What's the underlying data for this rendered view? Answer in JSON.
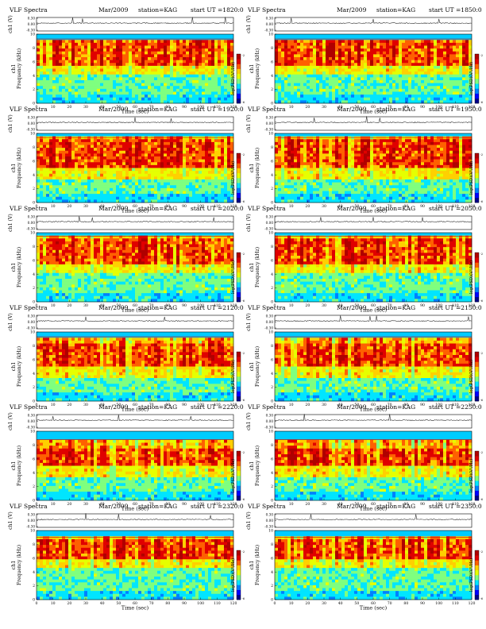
{
  "chart_data": [
    {
      "type": "heatmap",
      "title": "VLF Spectra",
      "date": "Mar/2009",
      "station": "station=KAG",
      "start": "start  UT  =1820:0",
      "xlabel": "Time  (sec)",
      "ylabel": "Frequency  (kHz)",
      "ylabel_channel": "ch1",
      "trace_label": "ch1 (V)",
      "trace_ticks": [
        "0.30",
        "0.00",
        "-0.30"
      ],
      "colorbar_label": "log(PSD)(V²/Hz)",
      "colorbar_ticks": [
        "-2",
        "-6"
      ],
      "xlim": [
        0,
        120
      ],
      "ylim": [
        0,
        10
      ],
      "x_ticks": [
        0,
        10,
        20,
        30,
        40,
        50,
        60,
        70,
        80,
        90,
        100,
        110,
        120
      ],
      "y_ticks": [
        0,
        2,
        4,
        6,
        8,
        10
      ],
      "band_top_khz": 9.3,
      "intense_band_khz": [
        5.5,
        9.0
      ],
      "spikes_sec": [
        22,
        28,
        95,
        115
      ]
    },
    {
      "type": "heatmap",
      "title": "VLF Spectra",
      "date": "Mar/2009",
      "station": "station=KAG",
      "start": "start  UT  =1850:0",
      "xlabel": "Time  (sec)",
      "ylabel": "Frequency  (kHz)",
      "ylabel_channel": "ch1",
      "trace_label": "ch1 (V)",
      "trace_ticks": [
        "0.30",
        "0.00",
        "-0.30"
      ],
      "colorbar_label": "log(PSD)(V²/Hz)",
      "colorbar_ticks": [
        "-2",
        "-6"
      ],
      "xlim": [
        0,
        120
      ],
      "ylim": [
        0,
        10
      ],
      "x_ticks": [
        0,
        10,
        20,
        30,
        40,
        50,
        60,
        70,
        80,
        90,
        100,
        110,
        120
      ],
      "y_ticks": [
        0,
        2,
        4,
        6,
        8,
        10
      ],
      "band_top_khz": 9.3,
      "intense_band_khz": [
        5.5,
        9.0
      ],
      "spikes_sec": [
        10,
        60,
        100
      ]
    },
    {
      "type": "heatmap",
      "title": "VLF Spectra",
      "date": "Mar/2009",
      "station": "station=KAG",
      "start": "start  UT  =1920:0",
      "xlabel": "Time  (sec)",
      "ylabel": "Frequency  (kHz)",
      "ylabel_channel": "ch1",
      "trace_label": "ch1 (V)",
      "trace_ticks": [
        "0.30",
        "0.00",
        "-0.30"
      ],
      "colorbar_label": "log(PSD)(V²/Hz)",
      "colorbar_ticks": [
        "-2",
        "-6"
      ],
      "xlim": [
        0,
        120
      ],
      "ylim": [
        0,
        10
      ],
      "x_ticks": [
        0,
        10,
        20,
        30,
        40,
        50,
        60,
        70,
        80,
        90,
        100,
        110,
        120
      ],
      "y_ticks": [
        0,
        2,
        4,
        6,
        8,
        10
      ],
      "band_top_khz": 9.4,
      "intense_band_khz": [
        5.0,
        9.2
      ],
      "spikes_sec": [
        60,
        82
      ]
    },
    {
      "type": "heatmap",
      "title": "VLF Spectra",
      "date": "Mar/2009",
      "station": "station=KAG",
      "start": "start  UT  =1950:0",
      "xlabel": "Time  (sec)",
      "ylabel": "Frequency  (kHz)",
      "ylabel_channel": "ch1",
      "trace_label": "ch1 (V)",
      "trace_ticks": [
        "0.30",
        "0.00",
        "-0.30"
      ],
      "colorbar_label": "log(PSD)(V²/Hz)",
      "colorbar_ticks": [
        "-2",
        "-6"
      ],
      "xlim": [
        0,
        120
      ],
      "ylim": [
        0,
        10
      ],
      "x_ticks": [
        0,
        10,
        20,
        30,
        40,
        50,
        60,
        70,
        80,
        90,
        100,
        110,
        120
      ],
      "y_ticks": [
        0,
        2,
        4,
        6,
        8,
        10
      ],
      "band_top_khz": 9.4,
      "intense_band_khz": [
        5.0,
        9.2
      ],
      "spikes_sec": [
        24,
        56,
        64
      ]
    },
    {
      "type": "heatmap",
      "title": "VLF Spectra",
      "date": "Mar/2009",
      "station": "station=KAG",
      "start": "start  UT  =2020:0",
      "xlabel": "Time  (sec)",
      "ylabel": "Frequency  (kHz)",
      "ylabel_channel": "ch1",
      "trace_label": "ch1 (V)",
      "trace_ticks": [
        "0.30",
        "0.00",
        "-0.30"
      ],
      "colorbar_label": "log(PSD)(V²/Hz)",
      "colorbar_ticks": [
        "-2",
        "-6"
      ],
      "xlim": [
        0,
        120
      ],
      "ylim": [
        0,
        10
      ],
      "x_ticks": [
        0,
        10,
        20,
        30,
        40,
        50,
        60,
        70,
        80,
        90,
        100,
        110,
        120
      ],
      "y_ticks": [
        0,
        2,
        4,
        6,
        8,
        10
      ],
      "band_top_khz": 9.5,
      "intense_band_khz": [
        5.5,
        9.2
      ],
      "spikes_sec": [
        26,
        34,
        108
      ]
    },
    {
      "type": "heatmap",
      "title": "VLF Spectra",
      "date": "Mar/2009",
      "station": "station=KAG",
      "start": "start  UT  =2050:0",
      "xlabel": "Time  (sec)",
      "ylabel": "Frequency  (kHz)",
      "ylabel_channel": "ch1",
      "trace_label": "ch1 (V)",
      "trace_ticks": [
        "0.30",
        "0.00",
        "-0.30"
      ],
      "colorbar_label": "log(PSD)(V²/Hz)",
      "colorbar_ticks": [
        "-2",
        "-6"
      ],
      "xlim": [
        0,
        120
      ],
      "ylim": [
        0,
        10
      ],
      "x_ticks": [
        0,
        10,
        20,
        30,
        40,
        50,
        60,
        70,
        80,
        90,
        100,
        110,
        120
      ],
      "y_ticks": [
        0,
        2,
        4,
        6,
        8,
        10
      ],
      "band_top_khz": 9.5,
      "intense_band_khz": [
        5.5,
        9.2
      ],
      "spikes_sec": [
        28,
        60,
        90
      ]
    },
    {
      "type": "heatmap",
      "title": "VLF Spectra",
      "date": "Mar/2009",
      "station": "station=KAG",
      "start": "start  UT  =2120:0",
      "xlabel": "Time  (sec)",
      "ylabel": "Frequency  (kHz)",
      "ylabel_channel": "ch1",
      "trace_label": "ch1 (V)",
      "trace_ticks": [
        "0.30",
        "0.00",
        "-0.30"
      ],
      "colorbar_label": "log(PSD)(V²/Hz)",
      "colorbar_ticks": [
        "-2",
        "-6"
      ],
      "xlim": [
        0,
        120
      ],
      "ylim": [
        0,
        10
      ],
      "x_ticks": [
        0,
        10,
        20,
        30,
        40,
        50,
        60,
        70,
        80,
        90,
        100,
        110,
        120
      ],
      "y_ticks": [
        0,
        2,
        4,
        6,
        8,
        10
      ],
      "band_top_khz": 9.3,
      "intense_band_khz": [
        5.0,
        8.3
      ],
      "spikes_sec": [
        30,
        78
      ]
    },
    {
      "type": "heatmap",
      "title": "VLF Spectra",
      "date": "Mar/2009",
      "station": "station=KAG",
      "start": "start  UT  =2150:0",
      "xlabel": "Time  (sec)",
      "ylabel": "Frequency  (kHz)",
      "ylabel_channel": "ch1",
      "trace_label": "ch1 (V)",
      "trace_ticks": [
        "0.30",
        "0.00",
        "-0.30"
      ],
      "colorbar_label": "log(PSD)(V²/Hz)",
      "colorbar_ticks": [
        "-2",
        "-6"
      ],
      "xlim": [
        0,
        120
      ],
      "ylim": [
        0,
        10
      ],
      "x_ticks": [
        0,
        10,
        20,
        30,
        40,
        50,
        60,
        70,
        80,
        90,
        100,
        110,
        120
      ],
      "y_ticks": [
        0,
        2,
        4,
        6,
        8,
        10
      ],
      "band_top_khz": 9.3,
      "intense_band_khz": [
        5.0,
        8.3
      ],
      "spikes_sec": [
        40,
        58,
        62,
        118
      ]
    },
    {
      "type": "heatmap",
      "title": "VLF Spectra",
      "date": "Mar/2009",
      "station": "station=KAG",
      "start": "start  UT  =2220:0",
      "xlabel": "Time  (sec)",
      "ylabel": "Frequency  (kHz)",
      "ylabel_channel": "ch1",
      "trace_label": "ch1 (V)",
      "trace_ticks": [
        "0.30",
        "0.00",
        "-0.30"
      ],
      "colorbar_label": "log(PSD)(V²/Hz)",
      "colorbar_ticks": [
        "-2",
        "-6"
      ],
      "xlim": [
        0,
        120
      ],
      "ylim": [
        0,
        10
      ],
      "x_ticks": [
        0,
        10,
        20,
        30,
        40,
        50,
        60,
        70,
        80,
        90,
        100,
        110,
        120
      ],
      "y_ticks": [
        0,
        2,
        4,
        6,
        8,
        10
      ],
      "band_top_khz": 8.8,
      "intense_band_khz": [
        4.8,
        7.6
      ],
      "spikes_sec": [
        10,
        50,
        94
      ]
    },
    {
      "type": "heatmap",
      "title": "VLF Spectra",
      "date": "Mar/2009",
      "station": "station=KAG",
      "start": "start  UT  =2250:0",
      "xlabel": "Time  (sec)",
      "ylabel": "Frequency  (kHz)",
      "ylabel_channel": "ch1",
      "trace_label": "ch1 (V)",
      "trace_ticks": [
        "0.30",
        "0.00",
        "-0.30"
      ],
      "colorbar_label": "log(PSD)(V²/Hz)",
      "colorbar_ticks": [
        "-2",
        "-6"
      ],
      "xlim": [
        0,
        120
      ],
      "ylim": [
        0,
        10
      ],
      "x_ticks": [
        0,
        10,
        20,
        30,
        40,
        50,
        60,
        70,
        80,
        90,
        100,
        110,
        120
      ],
      "y_ticks": [
        0,
        2,
        4,
        6,
        8,
        10
      ],
      "band_top_khz": 8.8,
      "intense_band_khz": [
        4.8,
        7.6
      ],
      "spikes_sec": [
        18,
        70
      ]
    },
    {
      "type": "heatmap",
      "title": "VLF Spectra",
      "date": "Mar/2009",
      "station": "station=KAG",
      "start": "start  UT  =2320:0",
      "xlabel": "Time  (sec)",
      "ylabel": "Frequency  (kHz)",
      "ylabel_channel": "ch1",
      "trace_label": "ch1 (V)",
      "trace_ticks": [
        "0.30",
        "0.00",
        "-0.30"
      ],
      "colorbar_label": "log(PSD)(V²/Hz)",
      "colorbar_ticks": [
        "-2",
        "-6"
      ],
      "xlim": [
        0,
        120
      ],
      "ylim": [
        0,
        10
      ],
      "x_ticks": [
        0,
        10,
        20,
        30,
        40,
        50,
        60,
        70,
        80,
        90,
        100,
        110,
        120
      ],
      "y_ticks": [
        0,
        2,
        4,
        6,
        8,
        10
      ],
      "band_top_khz": 9.0,
      "intense_band_khz": [
        6.0,
        8.8
      ],
      "spikes_sec": [
        30,
        50,
        106
      ]
    },
    {
      "type": "heatmap",
      "title": "VLF Spectra",
      "date": "Mar/2009",
      "station": "station=KAG",
      "start": "start  UT  =2350:0",
      "xlabel": "Time  (sec)",
      "ylabel": "Frequency  (kHz)",
      "ylabel_channel": "ch1",
      "trace_label": "ch1 (V)",
      "trace_ticks": [
        "0.30",
        "0.00",
        "-0.30"
      ],
      "colorbar_label": "log(PSD)(V²/Hz)",
      "colorbar_ticks": [
        "-2",
        "-6"
      ],
      "xlim": [
        0,
        120
      ],
      "ylim": [
        0,
        10
      ],
      "x_ticks": [
        0,
        10,
        20,
        30,
        40,
        50,
        60,
        70,
        80,
        90,
        100,
        110,
        120
      ],
      "y_ticks": [
        0,
        2,
        4,
        6,
        8,
        10
      ],
      "band_top_khz": 9.0,
      "intense_band_khz": [
        6.0,
        8.8
      ],
      "spikes_sec": [
        22,
        86
      ]
    }
  ],
  "colormap": [
    "#00008b",
    "#0000ff",
    "#0080ff",
    "#00e5ff",
    "#7fff7f",
    "#e6ff00",
    "#ffd000",
    "#ff6000",
    "#e00000",
    "#b00000"
  ],
  "colors": {
    "background": "#00ccff",
    "axis": "#000000",
    "trace": "#333333"
  }
}
